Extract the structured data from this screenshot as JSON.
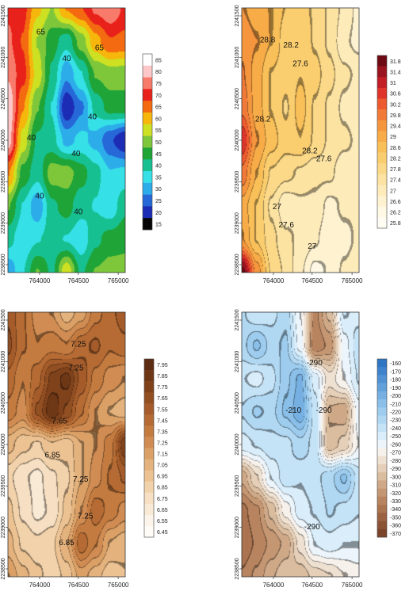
{
  "chart_data": [
    {
      "type": "heatmap",
      "x_ticks": [
        "764000",
        "764500",
        "765000"
      ],
      "y_ticks": [
        "2238500",
        "2239000",
        "2239500",
        "2240000",
        "2240500",
        "2241000",
        "2241500"
      ],
      "colorbar_labels": [
        "85",
        "80",
        "75",
        "70",
        "65",
        "60",
        "55",
        "50",
        "45",
        "40",
        "35",
        "30",
        "25",
        "20",
        "15"
      ],
      "colorbar_colors": [
        "#ffffff",
        "#ffc8c8",
        "#f87a6a",
        "#e8211b",
        "#f36a10",
        "#f6b60c",
        "#cde022",
        "#7ec73b",
        "#1fa438",
        "#17c090",
        "#35e0e6",
        "#2cadea",
        "#2668d8",
        "#1d2cb5",
        "#050505"
      ],
      "contour_labels": [
        "65",
        "65",
        "40",
        "40",
        "40",
        "40",
        "40",
        "40"
      ],
      "cells": [
        [
          70,
          68,
          58,
          52,
          62,
          66,
          72,
          75,
          70
        ],
        [
          72,
          66,
          52,
          45,
          40,
          50,
          60,
          66,
          65
        ],
        [
          75,
          68,
          55,
          42,
          30,
          38,
          48,
          50,
          50
        ],
        [
          80,
          62,
          48,
          38,
          20,
          28,
          40,
          45,
          45
        ],
        [
          78,
          55,
          42,
          40,
          32,
          35,
          32,
          25,
          20
        ],
        [
          62,
          46,
          40,
          50,
          50,
          45,
          40,
          34,
          35
        ],
        [
          48,
          38,
          30,
          42,
          45,
          40,
          38,
          35,
          42
        ],
        [
          40,
          35,
          38,
          40,
          38,
          35,
          42,
          45,
          46
        ],
        [
          30,
          38,
          48,
          42,
          56,
          42,
          48,
          50,
          50
        ]
      ],
      "vmin": 15,
      "vmax": 85
    },
    {
      "type": "heatmap",
      "x_ticks": [
        "764000",
        "764500",
        "765000"
      ],
      "y_ticks": [
        "2238500",
        "2239000",
        "2239500",
        "2240000",
        "2240500",
        "2241000",
        "2241500"
      ],
      "colorbar_labels": [
        "31.8",
        "31.4",
        "31",
        "30.6",
        "30.2",
        "29.8",
        "29.4",
        "29",
        "28.6",
        "28.2",
        "27.8",
        "27.4",
        "27",
        "26.6",
        "26.2",
        "25.8"
      ],
      "colorbar_colors": [
        "#6e0a14",
        "#9a1420",
        "#c21e26",
        "#de342a",
        "#ee5a30",
        "#f27a38",
        "#f5963e",
        "#f8ac48",
        "#f9bf58",
        "#facd6e",
        "#fbd988",
        "#fce3a2",
        "#fdebba",
        "#fef2d0",
        "#fef8e4",
        "#fffcf4"
      ],
      "contour_labels": [
        "28.8",
        "28.2",
        "27.6",
        "28.2",
        "28.2",
        "27.6",
        "27",
        "27.6",
        "27"
      ],
      "cells": [
        [
          29.2,
          29.0,
          28.8,
          28.4,
          28.2,
          28.0,
          27.6,
          27.2,
          26.8
        ],
        [
          29.4,
          29.2,
          28.8,
          28.2,
          28.4,
          28.0,
          27.6,
          27.0,
          26.8
        ],
        [
          29.6,
          29.0,
          28.4,
          28.2,
          28.4,
          28.2,
          27.8,
          27.4,
          27.2
        ],
        [
          29.8,
          29.0,
          28.4,
          28.0,
          28.6,
          28.0,
          27.6,
          27.2,
          27.0
        ],
        [
          30.6,
          29.2,
          28.6,
          28.2,
          28.4,
          28.0,
          27.6,
          27.4,
          27.2
        ],
        [
          29.8,
          28.8,
          28.0,
          27.8,
          27.6,
          27.4,
          27.4,
          27.0,
          27.2
        ],
        [
          29.0,
          28.4,
          27.6,
          27.0,
          27.2,
          27.2,
          26.8,
          27.0,
          27.0
        ],
        [
          29.2,
          28.4,
          27.8,
          27.4,
          27.2,
          27.0,
          26.6,
          26.8,
          27.0
        ],
        [
          31.6,
          29.4,
          28.0,
          27.6,
          27.0,
          26.4,
          26.6,
          27.0,
          27.2
        ]
      ],
      "vmin": 25.8,
      "vmax": 31.8
    },
    {
      "type": "heatmap",
      "x_ticks": [
        "764000",
        "764500",
        "765000"
      ],
      "y_ticks": [
        "2238500",
        "2239000",
        "2239500",
        "2240000",
        "2240500",
        "2241000",
        "2241500"
      ],
      "colorbar_labels": [
        "7.95",
        "7.85",
        "7.75",
        "7.65",
        "7.55",
        "7.45",
        "7.35",
        "7.25",
        "7.15",
        "7.05",
        "6.95",
        "6.85",
        "6.75",
        "6.65",
        "6.55",
        "6.45"
      ],
      "colorbar_colors": [
        "#5c2c12",
        "#6e3716",
        "#80421b",
        "#924f22",
        "#a55c2a",
        "#b56b33",
        "#c47b40",
        "#d08c52",
        "#dba066",
        "#e4b27c",
        "#ecc292",
        "#f2d2aa",
        "#f6dfc2",
        "#f9ead6",
        "#fcf4ea",
        "#fffbf6"
      ],
      "contour_labels": [
        "7.25",
        "7.25",
        "7.65",
        "6.85",
        "7.25",
        "7.25",
        "6.85"
      ],
      "cells": [
        [
          7.55,
          7.4,
          7.25,
          7.2,
          7.05,
          7.15,
          7.35,
          7.45,
          7.55
        ],
        [
          7.6,
          7.4,
          7.3,
          7.35,
          7.3,
          7.45,
          7.5,
          7.4,
          7.45
        ],
        [
          7.45,
          7.3,
          7.45,
          7.7,
          7.8,
          7.55,
          7.35,
          7.25,
          7.2
        ],
        [
          7.35,
          7.25,
          7.6,
          7.85,
          7.65,
          7.4,
          7.2,
          7.1,
          7.05
        ],
        [
          7.05,
          6.95,
          6.9,
          7.0,
          6.95,
          7.1,
          7.2,
          7.35,
          7.75
        ],
        [
          6.85,
          6.75,
          6.7,
          6.8,
          6.9,
          7.1,
          7.25,
          7.4,
          7.5
        ],
        [
          6.95,
          6.8,
          6.7,
          6.75,
          6.95,
          7.2,
          7.45,
          7.35,
          7.25
        ],
        [
          7.05,
          6.9,
          6.85,
          6.9,
          7.1,
          7.45,
          7.3,
          7.1,
          7.05
        ],
        [
          7.2,
          7.05,
          6.95,
          6.85,
          6.95,
          7.15,
          7.05,
          6.95,
          7.0
        ]
      ],
      "vmin": 6.45,
      "vmax": 7.95
    },
    {
      "type": "heatmap",
      "x_ticks": [
        "764000",
        "764500",
        "765000"
      ],
      "y_ticks": [
        "2238500",
        "2239000",
        "2239500",
        "2240000",
        "2240500",
        "2241000",
        "2241500"
      ],
      "colorbar_labels": [
        "-160",
        "-170",
        "-180",
        "-190",
        "-200",
        "-210",
        "-220",
        "-230",
        "-240",
        "-250",
        "-260",
        "-270",
        "-280",
        "-290",
        "-300",
        "-310",
        "-320",
        "-330",
        "-340",
        "-350",
        "-360",
        "-370"
      ],
      "colorbar_colors": [
        "#2e75c4",
        "#3f83cc",
        "#5192d4",
        "#63a1db",
        "#76b0e2",
        "#89bfe8",
        "#9dccee",
        "#b1d8f3",
        "#c5e3f7",
        "#d9edfa",
        "#ecf5fc",
        "#f7f1ec",
        "#efe1d2",
        "#e5cfb8",
        "#dabc9e",
        "#cfa987",
        "#c49672",
        "#b8845f",
        "#ab734f",
        "#9c6342",
        "#8c5436",
        "#7a452b"
      ],
      "contour_labels": [
        "-290",
        "-210",
        "-290",
        "-290"
      ],
      "cells": [
        [
          -235,
          -245,
          -240,
          -230,
          -265,
          -325,
          -300,
          -245,
          -250
        ],
        [
          -230,
          -215,
          -230,
          -225,
          -260,
          -330,
          -320,
          -260,
          -240
        ],
        [
          -245,
          -250,
          -240,
          -220,
          -205,
          -250,
          -280,
          -265,
          -245
        ],
        [
          -235,
          -225,
          -230,
          -215,
          -200,
          -240,
          -305,
          -310,
          -260
        ],
        [
          -250,
          -245,
          -240,
          -240,
          -230,
          -240,
          -300,
          -290,
          -265
        ],
        [
          -310,
          -285,
          -255,
          -240,
          -245,
          -240,
          -230,
          -215,
          -240
        ],
        [
          -335,
          -325,
          -300,
          -270,
          -250,
          -245,
          -235,
          -240,
          -245
        ],
        [
          -340,
          -330,
          -320,
          -310,
          -280,
          -255,
          -250,
          -255,
          -255
        ],
        [
          -330,
          -320,
          -305,
          -295,
          -300,
          -290,
          -285,
          -275,
          -270
        ]
      ],
      "vmin": -370,
      "vmax": -160
    }
  ]
}
